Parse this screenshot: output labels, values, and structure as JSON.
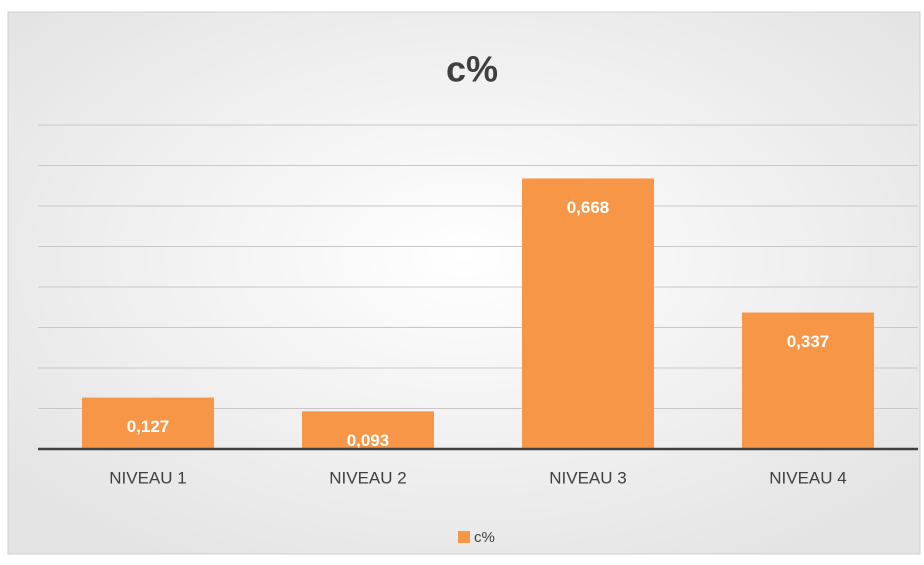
{
  "chart_data": {
    "type": "bar",
    "title": "c%",
    "categories": [
      "NIVEAU 1",
      "NIVEAU 2",
      "NIVEAU 3",
      "NIVEAU 4"
    ],
    "series": [
      {
        "name": "c%",
        "color": "#f79646",
        "values": [
          0.127,
          0.093,
          0.668,
          0.337
        ],
        "value_labels": [
          "0,127",
          "0,093",
          "0,668",
          "0,337"
        ]
      }
    ],
    "ylim": [
      0,
      0.8
    ],
    "yticks": [
      0,
      0.1,
      0.2,
      0.3,
      0.4,
      0.5,
      0.6,
      0.7,
      0.8
    ],
    "grid": true,
    "legend": "bottom"
  }
}
